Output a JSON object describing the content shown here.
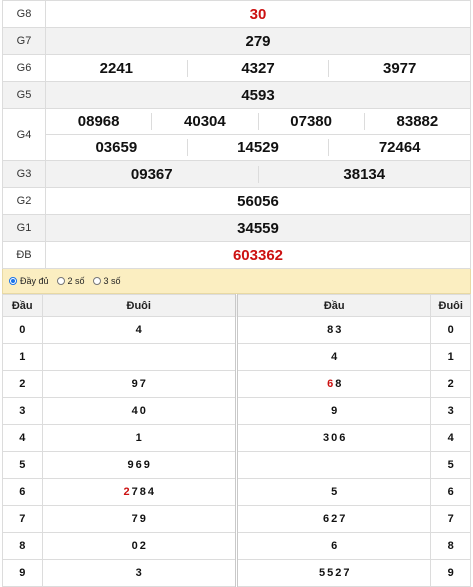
{
  "results": [
    {
      "label": "G8",
      "numbers": [
        "30"
      ],
      "red": true
    },
    {
      "label": "G7",
      "numbers": [
        "279"
      ]
    },
    {
      "label": "G6",
      "numbers": [
        "2241",
        "4327",
        "3977"
      ]
    },
    {
      "label": "G5",
      "numbers": [
        "4593"
      ]
    },
    {
      "label": "G4",
      "row1": [
        "08968",
        "40304",
        "07380",
        "83882"
      ],
      "row2": [
        "03659",
        "14529",
        "72464"
      ]
    },
    {
      "label": "G3",
      "numbers": [
        "09367",
        "38134"
      ]
    },
    {
      "label": "G2",
      "numbers": [
        "56056"
      ]
    },
    {
      "label": "G1",
      "numbers": [
        "34559"
      ]
    },
    {
      "label": "ĐB",
      "numbers": [
        "603362"
      ],
      "red": true
    }
  ],
  "options": [
    {
      "label": "Đầy đủ",
      "selected": true
    },
    {
      "label": "2 số",
      "selected": false
    },
    {
      "label": "3 số",
      "selected": false
    }
  ],
  "dd_headers": [
    "Đầu",
    "Đuôi",
    "Đầu",
    "Đuôi"
  ],
  "dd_rows": [
    {
      "dau": "0",
      "duoi": [
        "4"
      ],
      "dau2": [
        "8",
        "3"
      ],
      "duoi2": "0"
    },
    {
      "dau": "1",
      "duoi": [],
      "dau2": [
        "4"
      ],
      "duoi2": "1"
    },
    {
      "dau": "2",
      "duoi": [
        "9",
        "7"
      ],
      "dau2": [
        "6",
        "8"
      ],
      "dau2_red": [
        0
      ],
      "duoi2": "2"
    },
    {
      "dau": "3",
      "duoi": [
        "4",
        "0"
      ],
      "dau2": [
        "9"
      ],
      "duoi2": "3"
    },
    {
      "dau": "4",
      "duoi": [
        "1"
      ],
      "dau2": [
        "3",
        "0",
        "6"
      ],
      "duoi2": "4"
    },
    {
      "dau": "5",
      "duoi": [
        "9",
        "6",
        "9"
      ],
      "dau2": [],
      "duoi2": "5"
    },
    {
      "dau": "6",
      "duoi": [
        "2",
        "7",
        "8",
        "4"
      ],
      "duoi_red": [
        0
      ],
      "dau2": [
        "5"
      ],
      "duoi2": "6"
    },
    {
      "dau": "7",
      "duoi": [
        "7",
        "9"
      ],
      "dau2": [
        "6",
        "2",
        "7"
      ],
      "duoi2": "7"
    },
    {
      "dau": "8",
      "duoi": [
        "0",
        "2"
      ],
      "dau2": [
        "6"
      ],
      "duoi2": "8"
    },
    {
      "dau": "9",
      "duoi": [
        "3"
      ],
      "dau2": [
        "5",
        "5",
        "2",
        "7"
      ],
      "duoi2": "9"
    }
  ]
}
